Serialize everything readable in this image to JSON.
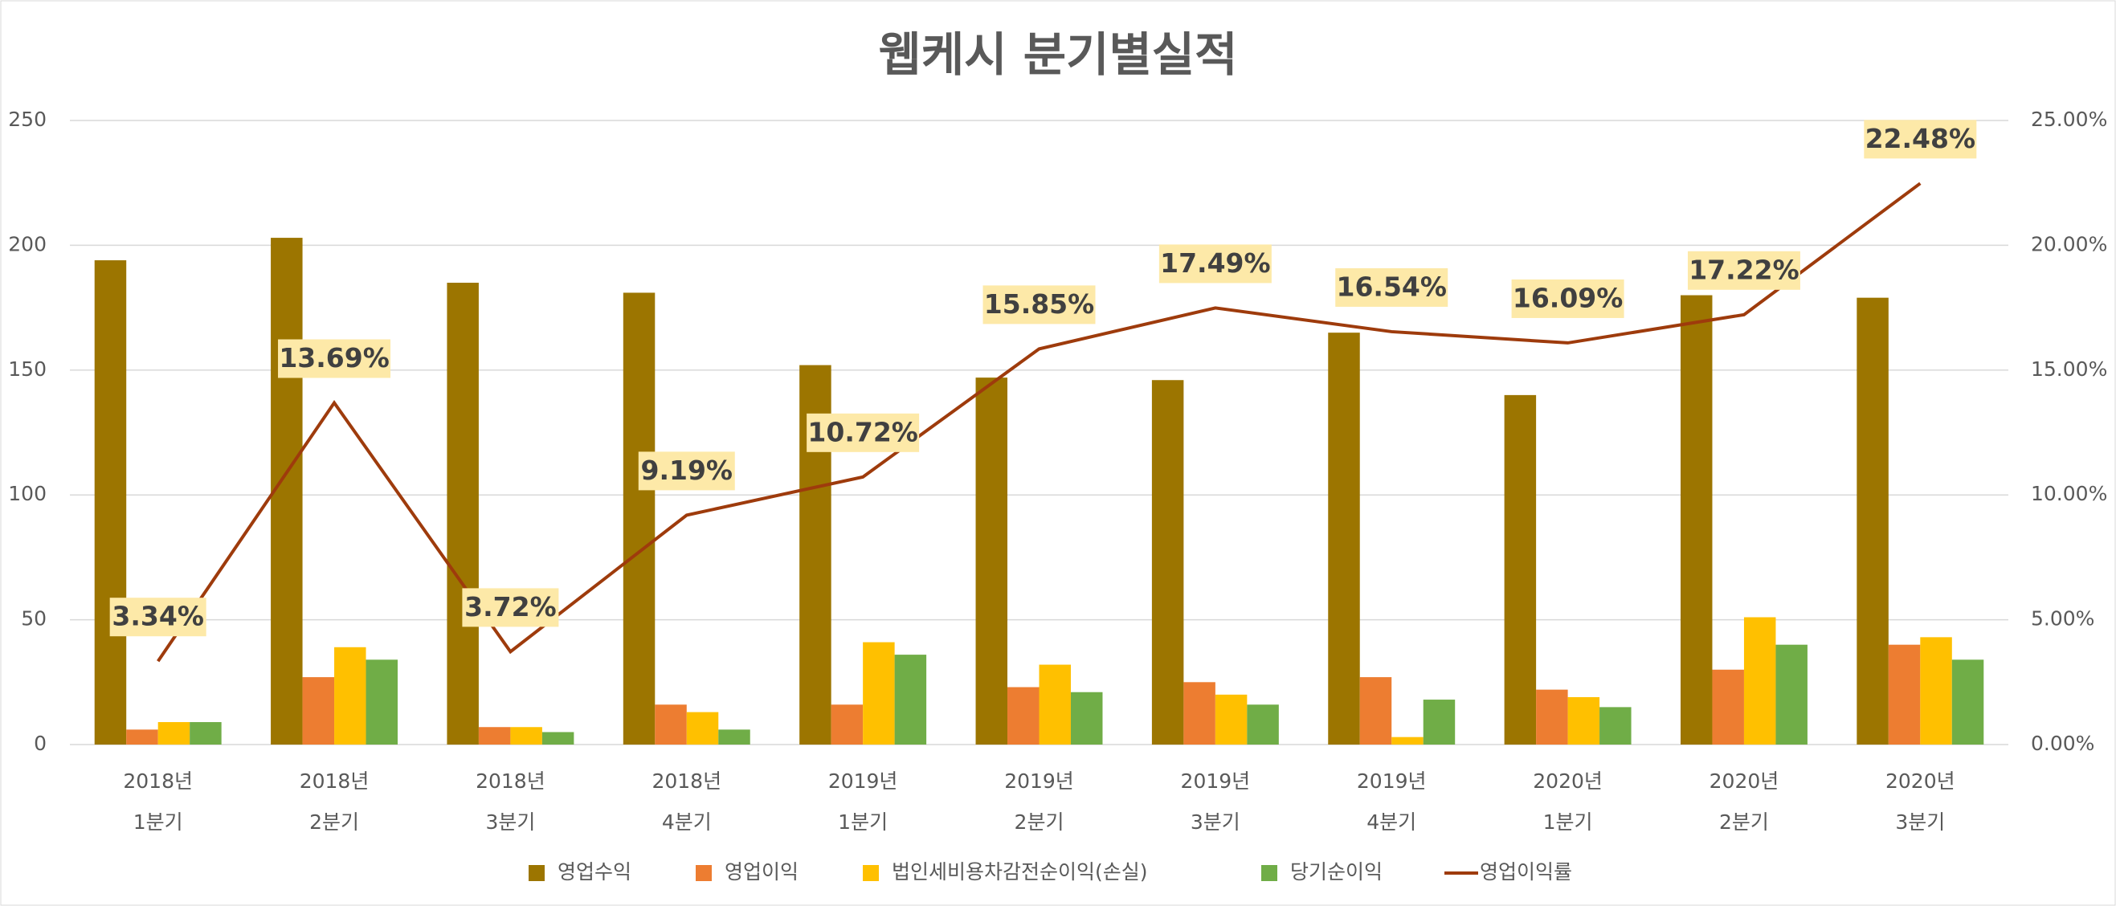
{
  "chart_data": {
    "type": "bar-line",
    "title": "웹케시 분기별실적",
    "categories": [
      [
        "2018년",
        "1분기"
      ],
      [
        "2018년",
        "2분기"
      ],
      [
        "2018년",
        "3분기"
      ],
      [
        "2018년",
        "4분기"
      ],
      [
        "2019년",
        "1분기"
      ],
      [
        "2019년",
        "2분기"
      ],
      [
        "2019년",
        "3분기"
      ],
      [
        "2019년",
        "4분기"
      ],
      [
        "2020년",
        "1분기"
      ],
      [
        "2020년",
        "2분기"
      ],
      [
        "2020년",
        "3분기"
      ]
    ],
    "series": [
      {
        "name": "영업수익",
        "color": "#9c7500",
        "kind": "bar",
        "values": [
          194,
          203,
          185,
          181,
          152,
          147,
          146,
          165,
          140,
          180,
          179
        ]
      },
      {
        "name": "영업이익",
        "color": "#ed7d31",
        "kind": "bar",
        "values": [
          6,
          27,
          7,
          16,
          16,
          23,
          25,
          27,
          22,
          30,
          40
        ]
      },
      {
        "name": "법인세비용차감전순이익(손실)",
        "color": "#ffc000",
        "kind": "bar",
        "values": [
          9,
          39,
          7,
          13,
          41,
          32,
          20,
          3,
          19,
          51,
          43
        ]
      },
      {
        "name": "당기순이익",
        "color": "#70ad47",
        "kind": "bar",
        "values": [
          9,
          34,
          5,
          6,
          36,
          21,
          16,
          18,
          15,
          40,
          34
        ]
      },
      {
        "name": "영업이익률",
        "color": "#9e3b0c",
        "kind": "line",
        "axis": "y2",
        "values": [
          3.34,
          13.69,
          3.72,
          9.19,
          10.72,
          15.85,
          17.49,
          16.54,
          16.09,
          17.22,
          22.48
        ],
        "value_labels": [
          "3.34%",
          "13.69%",
          "3.72%",
          "9.19%",
          "10.72%",
          "15.85%",
          "17.49%",
          "16.54%",
          "16.09%",
          "17.22%",
          "22.48%"
        ]
      }
    ],
    "ylim": [
      0,
      250
    ],
    "yticks": [
      0,
      50,
      100,
      150,
      200,
      250
    ],
    "y2lim": [
      0,
      25
    ],
    "y2ticks": [
      {
        "value": 0,
        "label": "0.00%"
      },
      {
        "value": 5,
        "label": "5.00%"
      },
      {
        "value": 10,
        "label": "10.00%"
      },
      {
        "value": 15,
        "label": "15.00%"
      },
      {
        "value": 20,
        "label": "20.00%"
      },
      {
        "value": 25,
        "label": "25.00%"
      }
    ],
    "grid": true,
    "legend": "bottom"
  }
}
